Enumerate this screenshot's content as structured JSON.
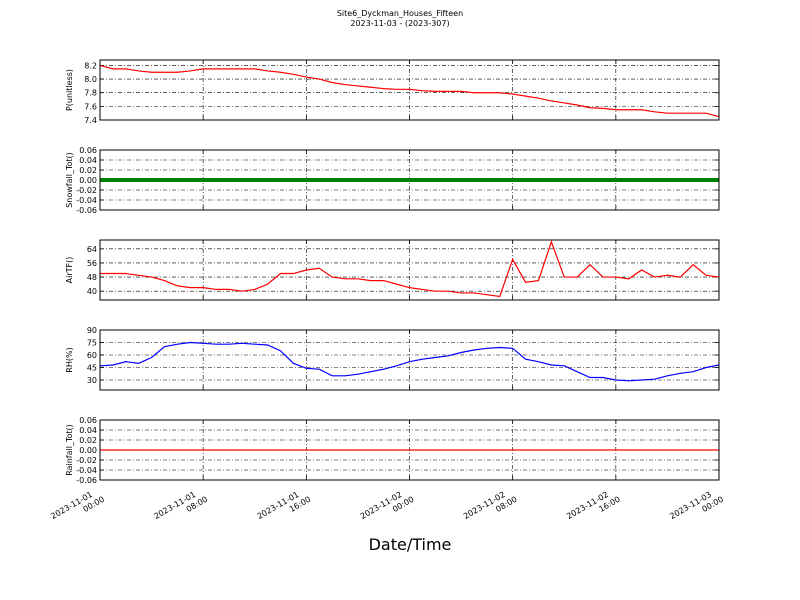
{
  "figure": {
    "title": "Site6_Dyckman_Houses_Fifteen",
    "subtitle": "2023-11-03 - (2023-307)",
    "xlabel": "Date/Time"
  },
  "x": [
    "2023-11-01 00:00",
    "2023-11-01 01:00",
    "2023-11-01 02:00",
    "2023-11-01 03:00",
    "2023-11-01 04:00",
    "2023-11-01 05:00",
    "2023-11-01 06:00",
    "2023-11-01 07:00",
    "2023-11-01 08:00",
    "2023-11-01 09:00",
    "2023-11-01 10:00",
    "2023-11-01 11:00",
    "2023-11-01 12:00",
    "2023-11-01 13:00",
    "2023-11-01 14:00",
    "2023-11-01 15:00",
    "2023-11-01 16:00",
    "2023-11-01 17:00",
    "2023-11-01 18:00",
    "2023-11-01 19:00",
    "2023-11-01 20:00",
    "2023-11-01 21:00",
    "2023-11-01 22:00",
    "2023-11-01 23:00",
    "2023-11-02 00:00",
    "2023-11-02 01:00",
    "2023-11-02 02:00",
    "2023-11-02 03:00",
    "2023-11-02 04:00",
    "2023-11-02 05:00",
    "2023-11-02 06:00",
    "2023-11-02 07:00",
    "2023-11-02 08:00",
    "2023-11-02 09:00",
    "2023-11-02 10:00",
    "2023-11-02 11:00",
    "2023-11-02 12:00",
    "2023-11-02 13:00",
    "2023-11-02 14:00",
    "2023-11-02 15:00",
    "2023-11-02 16:00",
    "2023-11-02 17:00",
    "2023-11-02 18:00",
    "2023-11-02 19:00",
    "2023-11-02 20:00",
    "2023-11-02 21:00",
    "2023-11-02 22:00",
    "2023-11-02 23:00",
    "2023-11-03 00:00"
  ],
  "xlim": [
    "2023-11-01 00:00",
    "2023-11-03 00:00"
  ],
  "xticks": [
    {
      "value": "2023-11-01 00:00",
      "label": "2023-11-01\n00:00"
    },
    {
      "value": "2023-11-01 08:00",
      "label": "2023-11-01\n08:00"
    },
    {
      "value": "2023-11-01 16:00",
      "label": "2023-11-01\n16:00"
    },
    {
      "value": "2023-11-02 00:00",
      "label": "2023-11-02\n00:00"
    },
    {
      "value": "2023-11-02 08:00",
      "label": "2023-11-02\n08:00"
    },
    {
      "value": "2023-11-02 16:00",
      "label": "2023-11-02\n16:00"
    },
    {
      "value": "2023-11-03 00:00",
      "label": "2023-11-03\n00:00"
    }
  ],
  "chart_data": [
    {
      "type": "line",
      "ylabel": "P(unitless)",
      "ylim": [
        7.4,
        8.28
      ],
      "yticks": [
        7.4,
        7.6,
        7.8,
        {
          "value": 8,
          "label": "8.0"
        },
        8.2
      ],
      "grid": true,
      "series": [
        {
          "name": "P",
          "color": "#ff0000",
          "values": [
            8.2,
            8.15,
            8.15,
            8.12,
            8.1,
            8.1,
            8.1,
            8.12,
            8.15,
            8.15,
            8.15,
            8.15,
            8.15,
            8.12,
            8.1,
            8.07,
            8.03,
            8.0,
            7.95,
            7.92,
            7.9,
            7.88,
            7.86,
            7.85,
            7.85,
            7.83,
            7.82,
            7.82,
            7.82,
            7.8,
            7.8,
            7.8,
            7.78,
            7.75,
            7.72,
            7.68,
            7.65,
            7.62,
            7.58,
            7.57,
            7.55,
            7.55,
            7.55,
            7.52,
            7.5,
            7.5,
            7.5,
            7.5,
            7.45
          ]
        }
      ]
    },
    {
      "type": "line",
      "ylabel": "Snowfall_Tot()",
      "ylim": [
        -0.06,
        0.06
      ],
      "yticks": [
        -0.06,
        -0.04,
        -0.02,
        {
          "value": 0,
          "label": "0.00"
        },
        0.02,
        0.04,
        0.06
      ],
      "grid": true,
      "series": [
        {
          "name": "Snowfall",
          "color": "#008000",
          "values": [
            0,
            0,
            0,
            0,
            0,
            0,
            0,
            0,
            0,
            0,
            0,
            0,
            0,
            0,
            0,
            0,
            0,
            0,
            0,
            0,
            0,
            0,
            0,
            0,
            0,
            0,
            0,
            0,
            0,
            0,
            0,
            0,
            0,
            0,
            0,
            0,
            0,
            0,
            0,
            0,
            0,
            0,
            0,
            0,
            0,
            0,
            0,
            0,
            0
          ]
        }
      ]
    },
    {
      "type": "line",
      "ylabel": "AirTF()",
      "ylim": [
        35,
        69
      ],
      "yticks": [
        40,
        48,
        56,
        64
      ],
      "grid": true,
      "series": [
        {
          "name": "AirTF",
          "color": "#ff0000",
          "values": [
            50,
            50,
            50,
            49,
            48,
            46,
            43,
            42,
            42,
            41,
            41,
            40,
            41,
            44,
            50,
            50,
            52,
            53,
            48,
            47,
            47,
            46,
            46,
            44,
            42,
            41,
            40,
            40,
            39,
            39,
            38,
            37,
            58,
            45,
            46,
            68,
            48,
            48,
            55,
            48,
            48,
            47,
            52,
            48,
            49,
            48,
            55,
            49,
            48
          ]
        }
      ]
    },
    {
      "type": "line",
      "ylabel": "RH(%)",
      "ylim": [
        18,
        90
      ],
      "yticks": [
        30,
        45,
        60,
        75,
        90
      ],
      "grid": true,
      "series": [
        {
          "name": "RH",
          "color": "#0000ff",
          "values": [
            47,
            48,
            52,
            50,
            57,
            70,
            73,
            75,
            74,
            73,
            73,
            74,
            73,
            72,
            65,
            50,
            44,
            43,
            35,
            35,
            37,
            40,
            43,
            47,
            52,
            55,
            57,
            59,
            63,
            66,
            68,
            69,
            68,
            55,
            52,
            48,
            47,
            40,
            33,
            33,
            30,
            29,
            30,
            31,
            35,
            38,
            40,
            45,
            48
          ]
        }
      ]
    },
    {
      "type": "line",
      "ylabel": "Rainfall_Tot()",
      "ylim": [
        -0.06,
        0.06
      ],
      "yticks": [
        -0.06,
        -0.04,
        -0.02,
        {
          "value": 0,
          "label": "0.00"
        },
        0.02,
        0.04,
        0.06
      ],
      "grid": true,
      "series": [
        {
          "name": "Rainfall",
          "color": "#ff0000",
          "values": [
            0,
            0,
            0,
            0,
            0,
            0,
            0,
            0,
            0,
            0,
            0,
            0,
            0,
            0,
            0,
            0,
            0,
            0,
            0,
            0,
            0,
            0,
            0,
            0,
            0,
            0,
            0,
            0,
            0,
            0,
            0,
            0,
            0,
            0,
            0,
            0,
            0,
            0,
            0,
            0,
            0,
            0,
            0,
            0,
            0,
            0,
            0,
            0,
            0
          ]
        }
      ]
    }
  ]
}
